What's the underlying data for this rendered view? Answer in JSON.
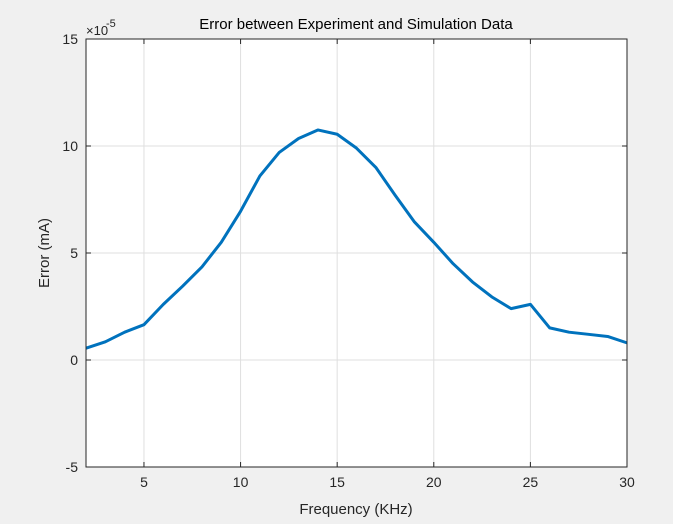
{
  "chart_data": {
    "type": "line",
    "title": "Error between Experiment and Simulation Data",
    "xlabel": "Frequency (KHz)",
    "ylabel": "Error (mA)",
    "y_multiplier_base": "×10",
    "y_multiplier_exponent": "-5",
    "xlim": [
      2,
      30
    ],
    "ylim": [
      -5,
      15
    ],
    "x_ticks": [
      5,
      10,
      15,
      20,
      25,
      30
    ],
    "y_ticks": [
      -5,
      0,
      5,
      10,
      15
    ],
    "grid": true,
    "series_color": "#0072BD",
    "x": [
      2,
      3,
      4,
      5,
      6,
      7,
      8,
      9,
      10,
      11,
      12,
      13,
      14,
      15,
      16,
      17,
      18,
      19,
      20,
      21,
      22,
      23,
      24,
      25,
      26,
      27,
      28,
      29,
      30
    ],
    "y": [
      0.55,
      0.85,
      1.3,
      1.65,
      2.6,
      3.45,
      4.35,
      5.5,
      6.95,
      8.6,
      9.7,
      10.35,
      10.75,
      10.55,
      9.9,
      9.0,
      7.7,
      6.45,
      5.5,
      4.5,
      3.65,
      2.95,
      2.4,
      2.6,
      1.5,
      1.3,
      1.2,
      1.1,
      0.8
    ]
  }
}
